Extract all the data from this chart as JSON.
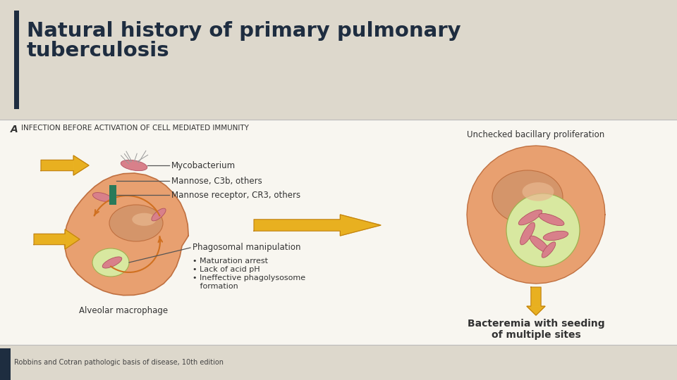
{
  "title_line1": "Natural history of primary pulmonary",
  "title_line2": "tuberculosis",
  "title_bg_color": "#ddd8cc",
  "title_bar_color": "#1e2d40",
  "title_text_color": "#1e2d40",
  "diagram_bg_color": "#f8f6f0",
  "footer_bg_color": "#ddd8cc",
  "footer_text": "Robbins and Cotran pathologic basis of disease, 10",
  "footer_superscript": "th",
  "footer_text2": " edition",
  "section_label": "A",
  "section_subtitle": "INFECTION BEFORE ACTIVATION OF CELL MEDIATED IMMUNITY",
  "label_mycobacterium": "Mycobacterium",
  "label_mannose": "Mannose, C3b, others",
  "label_receptor": "Mannose receptor, CR3, others",
  "label_phagosomal": "Phagosomal manipulation",
  "label_bullet1": "• Maturation arrest",
  "label_bullet2": "• Lack of acid pH",
  "label_bullet3": "• Ineffective phagolysosome",
  "label_bullet4": "   formation",
  "label_alveolar": "Alveolar macrophage",
  "label_unchecked": "Unchecked bacillary proliferation",
  "label_bacteremia1": "Bacteremia with seeding",
  "label_bacteremia2": "of multiple sites",
  "cell_fill": "#e8a070",
  "cell_edge": "#c07040",
  "nucleus_fill": "#d4956a",
  "nucleus_highlight": "#e8b890",
  "phagosome_fill": "#d8e8a0",
  "phagosome_edge": "#a0b050",
  "bacteria_fill": "#d8808a",
  "bacteria_edge": "#b05060",
  "arrow_fill": "#e8b020",
  "arrow_edge": "#c08010",
  "receptor_fill": "#2a7a5a",
  "orange_curve": "#d07020",
  "line_color": "#555555",
  "text_color": "#333333",
  "diagram_border": "#cccccc",
  "white": "#ffffff"
}
